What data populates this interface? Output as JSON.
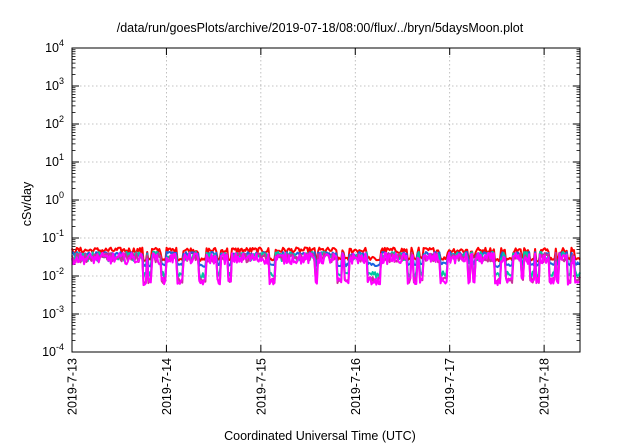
{
  "chart_data": {
    "type": "line",
    "title": "/data/run/goesPlots/archive/2019-07-18/08:00/flux/../bryn/5daysMoon.plot",
    "xlabel": "Coordinated Universal Time (UTC)",
    "ylabel": "cSv/day",
    "x_ticks": [
      "2019-7-13",
      "2019-7-14",
      "2019-7-15",
      "2019-7-16",
      "2019-7-17",
      "2019-7-18"
    ],
    "y_ticks": [
      {
        "base": "10",
        "exp": "4"
      },
      {
        "base": "10",
        "exp": "3"
      },
      {
        "base": "10",
        "exp": "2"
      },
      {
        "base": "10",
        "exp": "1"
      },
      {
        "base": "10",
        "exp": "0"
      },
      {
        "base": "10",
        "exp": "-1"
      },
      {
        "base": "10",
        "exp": "-2"
      },
      {
        "base": "10",
        "exp": "-3"
      },
      {
        "base": "10",
        "exp": "-4"
      }
    ],
    "yscale": "log",
    "ylim": [
      0.0001,
      10000
    ],
    "xlim_days": [
      0,
      5.38
    ],
    "grid": true,
    "series": [
      {
        "color": "#ff0000",
        "baseline": 0.045,
        "dips": [
          0.03,
          0.026
        ],
        "noise": 0.15
      },
      {
        "color": "#1a64e0",
        "baseline": 0.036,
        "dips": [
          0.022,
          0.018
        ],
        "noise": 0.12
      },
      {
        "color": "#00c8a0",
        "baseline": 0.03,
        "dips": [
          0.012,
          0.01
        ],
        "noise": 0.25
      },
      {
        "color": "#c8309a",
        "baseline": 0.028,
        "dips": [
          0.008,
          0.0075
        ],
        "noise": 0.25
      },
      {
        "color": "#ff00ff",
        "baseline": 0.026,
        "dips": [
          0.0075,
          0.007
        ],
        "noise": 0.3
      }
    ]
  }
}
